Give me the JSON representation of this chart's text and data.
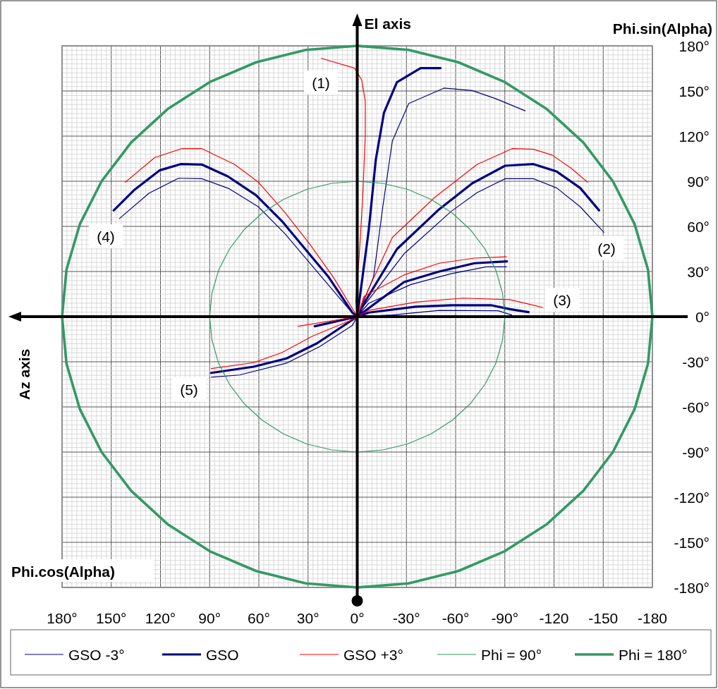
{
  "chart_data": {
    "type": "line",
    "xlabel": "Phi.cos(Alpha)",
    "ylabel": "Phi.sin(Alpha)",
    "xlim": [
      180,
      -180
    ],
    "ylim": [
      -180,
      180
    ],
    "xticks": [
      {
        "value": 180,
        "label": "180°"
      },
      {
        "value": 150,
        "label": "150°"
      },
      {
        "value": 120,
        "label": "120°"
      },
      {
        "value": 90,
        "label": "90°"
      },
      {
        "value": 60,
        "label": "60°"
      },
      {
        "value": 30,
        "label": "30°"
      },
      {
        "value": 0,
        "label": "0°"
      },
      {
        "value": -30,
        "label": "-30°"
      },
      {
        "value": -60,
        "label": "-60°"
      },
      {
        "value": -90,
        "label": "-90°"
      },
      {
        "value": -120,
        "label": "-120"
      },
      {
        "value": -150,
        "label": "-150"
      },
      {
        "value": -180,
        "label": "-180"
      }
    ],
    "yticks": [
      {
        "value": 180,
        "label": "180°"
      },
      {
        "value": 150,
        "label": "150°"
      },
      {
        "value": 120,
        "label": "120°"
      },
      {
        "value": 90,
        "label": "90°"
      },
      {
        "value": 60,
        "label": "60°"
      },
      {
        "value": 30,
        "label": "30°"
      },
      {
        "value": 0,
        "label": "0°"
      },
      {
        "value": -30,
        "label": "-30°"
      },
      {
        "value": -60,
        "label": "-60°"
      },
      {
        "value": -90,
        "label": "-90°"
      },
      {
        "value": -120,
        "label": "-120°"
      },
      {
        "value": -150,
        "label": "-150°"
      },
      {
        "value": -180,
        "label": "-180°"
      }
    ],
    "grid": true,
    "legend": "bottom",
    "marker": "none",
    "line_style": "solid",
    "annotations": [
      "(1)",
      "(2)",
      "(3)",
      "(4)",
      "(5)",
      "El axis",
      "Az axis"
    ],
    "series": [
      {
        "name": "GSO -3°",
        "color": "#000080",
        "x": [
          145,
          127,
          109,
          94.8,
          78,
          60.3,
          44,
          28.8,
          4.4,
          0,
          null,
          0,
          -9.9,
          -15.6,
          -21.4,
          -31.4,
          -52.9,
          -70.1,
          -84.4,
          -102.4,
          null,
          0,
          -4.2,
          -14.2,
          -28.5,
          -57.2,
          -73,
          -90.2,
          -107.4,
          -121.7,
          -136,
          -150.4,
          null,
          0,
          -7,
          -32.8,
          -57.2,
          -78.7,
          -91,
          null,
          0,
          -21.4,
          -50,
          -85.9,
          -94.2,
          null,
          0,
          3,
          23.1,
          43.1,
          71.8,
          89
        ],
        "values": [
          65.2,
          82,
          92,
          91.7,
          85,
          73,
          55,
          35.5,
          4.2,
          0,
          null,
          0,
          26.1,
          73,
          116.7,
          141.7,
          151.9,
          150.3,
          144.9,
          136.8,
          null,
          0,
          7.4,
          21.4,
          41.7,
          69.9,
          82.4,
          91.7,
          91.7,
          85.5,
          73,
          56.1,
          null,
          0,
          8.9,
          21.4,
          28.5,
          33.1,
          33.1,
          null,
          0,
          1.1,
          4.2,
          3.9,
          1.1,
          null,
          0,
          -5.9,
          -20,
          -30.9,
          -38.8,
          -40.3
        ]
      },
      {
        "name": "GSO",
        "color": "#000080",
        "x": [
          148.5,
          136.3,
          120.6,
          107.7,
          94.8,
          79,
          61.8,
          46,
          31.7,
          17.3,
          3,
          0,
          null,
          0,
          -7,
          -11.3,
          -16.3,
          -24.2,
          -38.6,
          -50.8,
          null,
          0,
          -4.2,
          -24.2,
          -50,
          -70.1,
          -90.2,
          -107.4,
          -121.7,
          -136,
          -147.5,
          null,
          0,
          -28.5,
          -50,
          -71.5,
          -91.3,
          null,
          0,
          -7,
          -35.7,
          -57.2,
          -81.6,
          -93,
          -104.5,
          null,
          0,
          24.5,
          43.1,
          63.2,
          89,
          null,
          0,
          25.9
        ],
        "values": [
          70.6,
          83.9,
          97.2,
          101.4,
          101.1,
          93.3,
          80.8,
          63.6,
          44.9,
          26.1,
          2.7,
          0,
          null,
          0,
          57.3,
          104.2,
          135.5,
          155.8,
          165.2,
          165.2,
          null,
          0,
          8.9,
          44.9,
          71.4,
          88.6,
          100.3,
          101.4,
          96.4,
          85.5,
          70.6,
          null,
          0,
          23,
          30,
          35.5,
          36.7,
          null,
          0,
          2.7,
          6.6,
          7.6,
          7.6,
          5,
          3,
          null,
          0,
          -17.7,
          -27.8,
          -33.3,
          -37.4,
          null,
          0,
          -6.4
        ]
      },
      {
        "name": "GSO +3°",
        "color": "#ff0000",
        "x": [
          141.4,
          123.4,
          107,
          94.8,
          74.7,
          60.3,
          44.6,
          28.8,
          14.5,
          2.3,
          0,
          null,
          0,
          0.9,
          -1.3,
          -3.4,
          -4.9,
          -4.9,
          -2.7,
          1.6,
          21.9,
          null,
          0,
          -4.2,
          -21.4,
          -47.2,
          -73,
          -94.5,
          -107.4,
          -118.8,
          -130.3,
          -140.4,
          null,
          0,
          -4.2,
          -28.5,
          -50,
          -71.5,
          -91,
          null,
          0,
          -7,
          -35.7,
          -64.4,
          -93,
          -113.1,
          null,
          0,
          3,
          27.4,
          46,
          63.2,
          89,
          null,
          0,
          36
        ],
        "values": [
          89.4,
          105.8,
          111.7,
          111.7,
          101.1,
          89.4,
          69.9,
          48,
          26.1,
          4.2,
          0,
          null,
          0,
          10.5,
          41.7,
          80.8,
          119.9,
          143.3,
          157.4,
          165.2,
          171.7,
          null,
          0,
          12,
          52.6,
          79.2,
          101.1,
          111.7,
          111.3,
          107.4,
          98.8,
          89.4,
          null,
          0,
          13.6,
          27.7,
          35.5,
          38.9,
          39.8,
          null,
          0,
          4.2,
          9.7,
          12.3,
          11.3,
          6.1,
          null,
          0,
          -2,
          -13,
          -23.9,
          -30.6,
          -34.5,
          null,
          0,
          -6.4
        ]
      },
      {
        "name": "Phi = 90°",
        "color": "#339966",
        "x": [
          90,
          88.6,
          84.6,
          77.9,
          68.9,
          57.9,
          45,
          30.8,
          15.6,
          0,
          -15.6,
          -30.8,
          -45,
          -57.9,
          -68.9,
          -77.9,
          -84.6,
          -88.6,
          -90,
          null,
          -90,
          -88.6,
          -84.6,
          -77.9,
          -68.9,
          -57.9,
          -45,
          -30.8,
          -15.6,
          0,
          15.6,
          30.8,
          45,
          57.9,
          68.9,
          77.9,
          84.6,
          88.6,
          90
        ],
        "values": [
          0,
          15.6,
          30.8,
          45,
          57.9,
          68.9,
          77.9,
          84.6,
          88.6,
          90,
          88.6,
          84.6,
          77.9,
          68.9,
          57.9,
          45,
          30.8,
          15.6,
          0,
          null,
          0,
          -15.6,
          -30.8,
          -45,
          -57.9,
          -68.9,
          -77.9,
          -84.6,
          -88.6,
          -90,
          -88.6,
          -84.6,
          -77.9,
          -68.9,
          -57.9,
          -45,
          -30.8,
          -15.6,
          0
        ]
      },
      {
        "name": "Phi = 180°",
        "color": "#339966",
        "x": [
          180,
          177.3,
          169.1,
          155.9,
          137.9,
          115.7,
          90,
          61.6,
          31.3,
          0,
          -31.3,
          -61.6,
          -90,
          -115.7,
          -137.9,
          -155.9,
          -169.1,
          -177.3,
          -180,
          null,
          -180,
          -177.3,
          -169.1,
          -155.9,
          -137.9,
          -115.7,
          -90,
          -61.6,
          -31.3,
          0,
          31.3,
          61.6,
          90,
          115.7,
          137.9,
          155.9,
          169.1,
          177.3,
          180
        ],
        "values": [
          0,
          31.3,
          61.6,
          90,
          115.7,
          137.9,
          155.9,
          169.1,
          177.3,
          180,
          177.3,
          169.1,
          155.9,
          137.9,
          115.7,
          90,
          61.6,
          31.3,
          0,
          null,
          0,
          -31.3,
          -61.6,
          -90,
          -115.7,
          -137.9,
          -155.9,
          -169.1,
          -177.3,
          -180,
          -177.3,
          -169.1,
          -155.9,
          -137.9,
          -115.7,
          -90,
          -61.6,
          -31.3,
          0
        ]
      }
    ]
  }
}
